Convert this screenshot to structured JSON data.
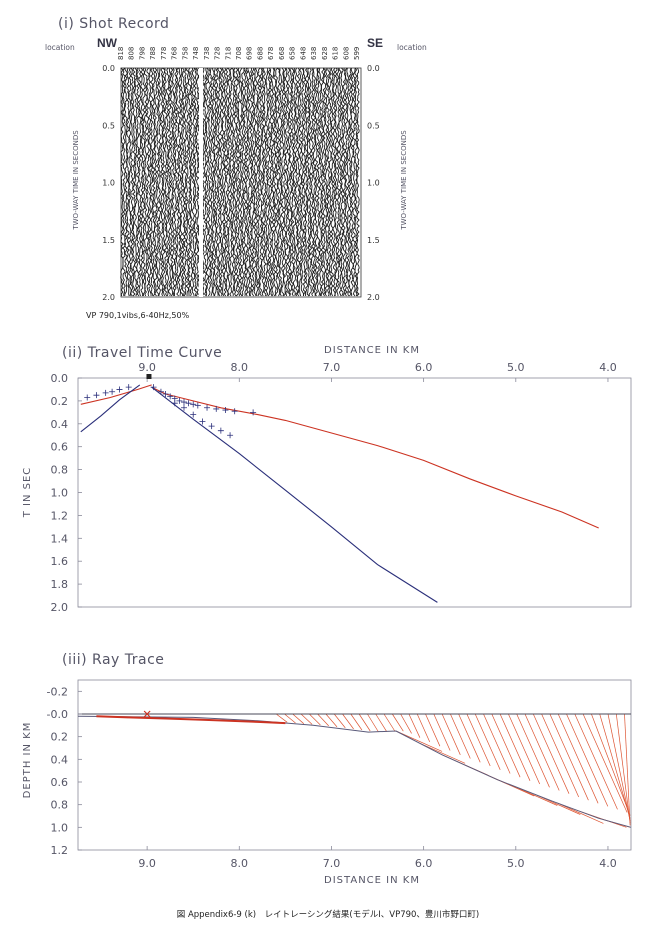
{
  "chart_data": [
    {
      "type": "heatmap",
      "title": "(i) Shot Record",
      "left_direction": "NW",
      "right_direction": "SE",
      "location_label": "location",
      "station_labels": [
        "818",
        "808",
        "798",
        "788",
        "778",
        "768",
        "758",
        "748",
        "738",
        "728",
        "718",
        "708",
        "698",
        "688",
        "678",
        "668",
        "658",
        "648",
        "638",
        "628",
        "618",
        "608",
        "599"
      ],
      "y_ticks": [
        "0.0",
        "0.5",
        "1.0",
        "1.5",
        "2.0"
      ],
      "ylim": [
        0,
        2.0
      ],
      "ylabel": "TWO-WAY TIME IN SECONDS",
      "footer": "VP 790,1vibs,6-40Hz,50%"
    },
    {
      "type": "line",
      "title": "(ii) Travel Time Curve",
      "xlabel": "DISTANCE IN KM",
      "ylabel": "T IN SEC",
      "x_ticks": [
        "9.0",
        "8.0",
        "7.0",
        "6.0",
        "5.0",
        "4.0"
      ],
      "y_ticks": [
        "0.0",
        "0.2",
        "0.4",
        "0.6",
        "0.8",
        "1.0",
        "1.2",
        "1.4",
        "1.6",
        "1.8",
        "2.0"
      ],
      "xlim": [
        9.75,
        3.75
      ],
      "ylim": [
        0,
        2.0
      ],
      "series": [
        {
          "color": "#cc3322",
          "x": [
            9.72,
            9.4,
            9.1,
            8.95
          ],
          "y": [
            0.23,
            0.17,
            0.1,
            0.06
          ]
        },
        {
          "color": "#2a2f7a",
          "x": [
            9.72,
            9.5,
            9.3,
            9.08
          ],
          "y": [
            0.47,
            0.33,
            0.19,
            0.06
          ]
        },
        {
          "color": "#cc3322",
          "x": [
            8.95,
            8.8,
            8.5,
            8.2,
            7.8,
            7.5,
            7.0,
            6.5,
            6.0,
            5.5,
            5.0,
            4.5,
            4.1
          ],
          "y": [
            0.08,
            0.14,
            0.2,
            0.26,
            0.32,
            0.37,
            0.48,
            0.59,
            0.72,
            0.88,
            1.03,
            1.17,
            1.31
          ]
        },
        {
          "color": "#2a2f7a",
          "x": [
            8.95,
            8.5,
            8.0,
            7.5,
            7.0,
            6.5,
            5.85
          ],
          "y": [
            0.08,
            0.36,
            0.66,
            0.98,
            1.3,
            1.63,
            1.96
          ]
        }
      ],
      "picks": {
        "x": [
          9.65,
          9.55,
          9.45,
          9.38,
          9.3,
          9.2,
          8.93,
          8.85,
          8.8,
          8.75,
          8.7,
          8.65,
          8.6,
          8.55,
          8.5,
          8.45,
          8.35,
          8.25,
          8.15,
          8.05,
          7.85,
          8.7,
          8.6,
          8.5,
          8.4,
          8.3,
          8.2,
          8.1
        ],
        "y": [
          0.17,
          0.15,
          0.13,
          0.12,
          0.1,
          0.08,
          0.08,
          0.12,
          0.14,
          0.16,
          0.18,
          0.2,
          0.21,
          0.22,
          0.23,
          0.24,
          0.26,
          0.27,
          0.28,
          0.29,
          0.3,
          0.22,
          0.26,
          0.32,
          0.38,
          0.42,
          0.46,
          0.5
        ]
      }
    },
    {
      "type": "line",
      "title": "(iii) Ray Trace",
      "xlabel": "DISTANCE IN KM",
      "ylabel": "DEPTH IN KM",
      "x_ticks": [
        "9.0",
        "8.0",
        "7.0",
        "6.0",
        "5.0",
        "4.0"
      ],
      "y_ticks": [
        "-0.2",
        "-0.0",
        "0.2",
        "0.4",
        "0.6",
        "0.8",
        "1.0",
        "1.2"
      ],
      "xlim": [
        9.75,
        3.75
      ],
      "ylim": [
        -0.3,
        1.2
      ],
      "surface": {
        "x": [
          9.75,
          3.75
        ],
        "y": [
          0.0,
          0.0
        ]
      },
      "layer_boundary": {
        "x": [
          9.75,
          8.5,
          7.8,
          7.2,
          6.6,
          6.3,
          5.8,
          5.2,
          4.6,
          4.1,
          3.75
        ],
        "y": [
          0.02,
          0.03,
          0.06,
          0.1,
          0.16,
          0.15,
          0.36,
          0.58,
          0.77,
          0.92,
          1.0
        ]
      },
      "near_ray": {
        "color": "#cc3322",
        "x": [
          9.55,
          9.2,
          8.8,
          8.4,
          7.8,
          7.5
        ],
        "y": [
          0.02,
          0.03,
          0.04,
          0.05,
          0.07,
          0.08
        ]
      },
      "shot_x": 9.0
    }
  ],
  "caption": "図 Appendix6-9 (k)　レイトレーシング結果(モデルⅠ、VP790、豊川市野口町)"
}
